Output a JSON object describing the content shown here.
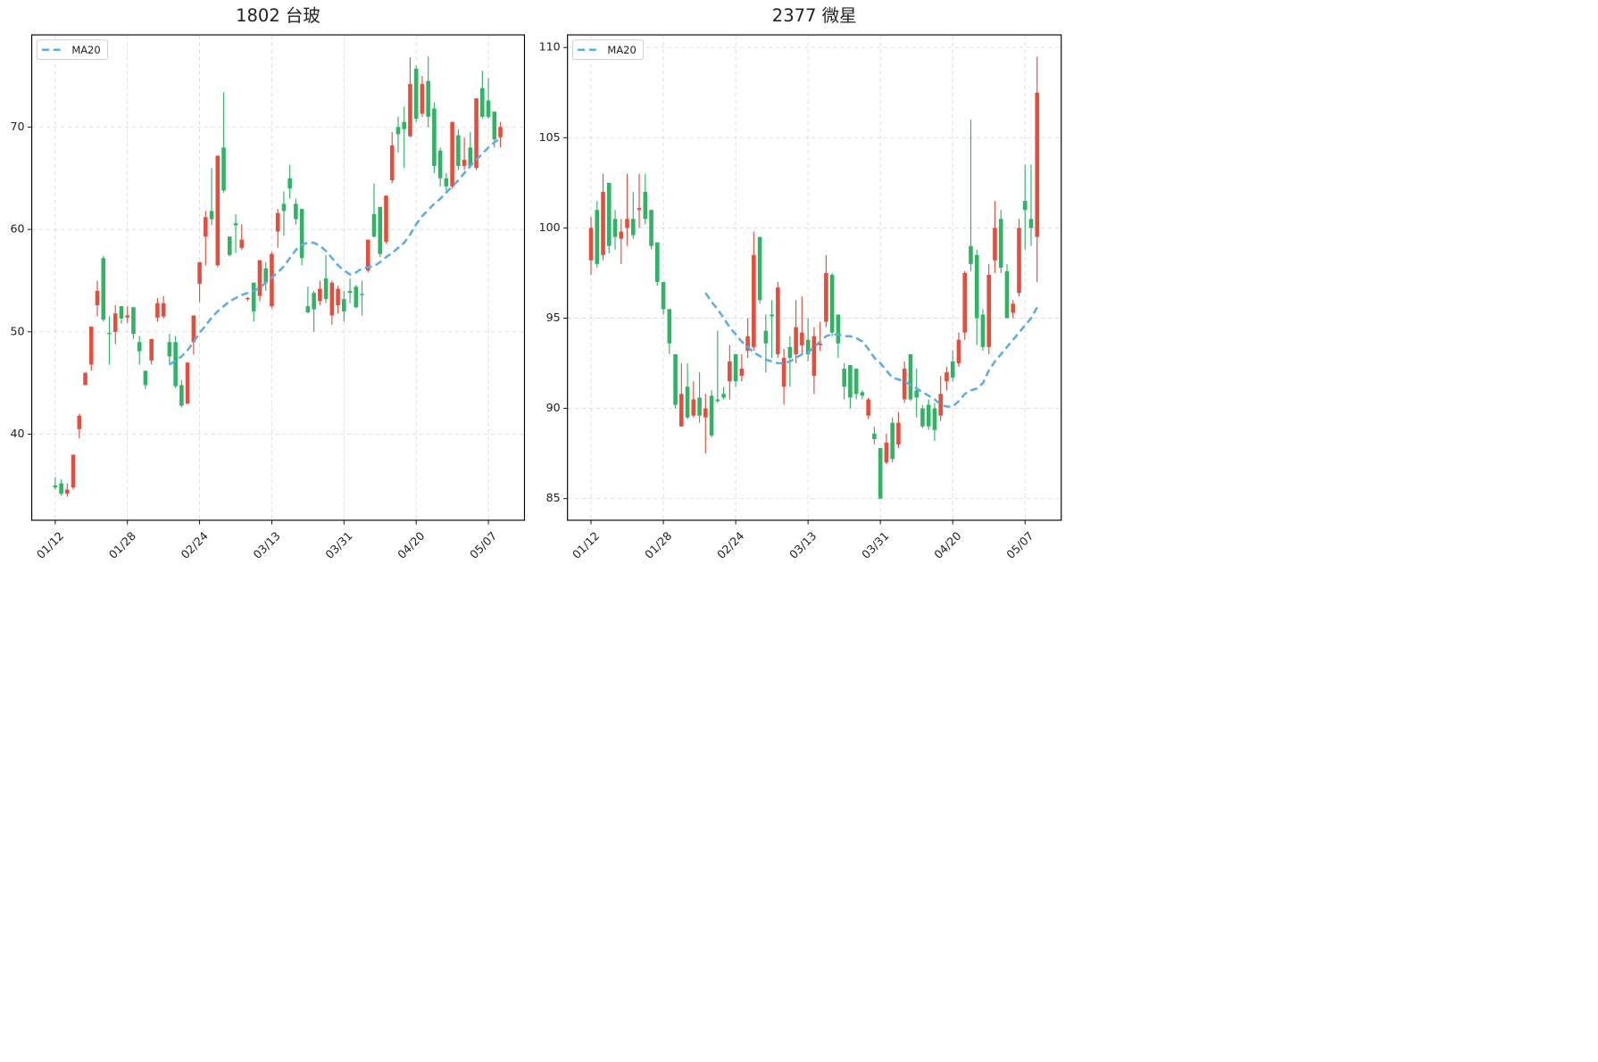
{
  "chart_data": [
    {
      "type": "candlestick",
      "title": "1802 台玻",
      "xlim": [
        -3.9,
        78
      ],
      "xticks": [
        {
          "value": 0,
          "label": "01/12"
        },
        {
          "value": 12,
          "label": "01/28"
        },
        {
          "value": 24,
          "label": "02/24"
        },
        {
          "value": 36,
          "label": "03/13"
        },
        {
          "value": 48,
          "label": "03/31"
        },
        {
          "value": 60,
          "label": "04/20"
        },
        {
          "value": 72,
          "label": "05/07"
        }
      ],
      "ylim": [
        31.6,
        79.0
      ],
      "yticks": [
        40,
        50,
        60,
        70
      ],
      "grid": true,
      "legend": "upper left",
      "up_color": "#e74c3c",
      "down_color": "#2eb464",
      "open": [
        35.0,
        35.2,
        34.2,
        34.8,
        40.5,
        44.8,
        46.8,
        52.6,
        57.2,
        49.9,
        50.0,
        52.5,
        51.4,
        52.4,
        49.0,
        46.2,
        47.2,
        51.4,
        51.5,
        49.0,
        49.0,
        44.8,
        43.0,
        49.0,
        54.7,
        59.3,
        61.8,
        56.5,
        68.0,
        59.3,
        60.6,
        58.2,
        53.2,
        54.8,
        53.5,
        56.2,
        52.5,
        59.8,
        62.5,
        65.0,
        62.5,
        62.0,
        52.5,
        53.8,
        53.0,
        55.2,
        51.6,
        52.6,
        53.2,
        54.0,
        54.4,
        53.7,
        56.0,
        61.5,
        62.2,
        58.8,
        64.8,
        70.0,
        70.5,
        69.1,
        75.7,
        71.3,
        74.5,
        71.8,
        67.7,
        65.0,
        64.2,
        69.2,
        66.2,
        68.0,
        66.0,
        73.8,
        72.6,
        71.5,
        69.0
      ],
      "high": [
        35.8,
        35.6,
        35.2,
        38.0,
        42.0,
        46.0,
        50.5,
        55.0,
        57.4,
        51.5,
        52.6,
        52.5,
        52.5,
        52.4,
        49.6,
        46.2,
        49.3,
        53.3,
        53.5,
        49.8,
        49.6,
        45.3,
        47.0,
        51.6,
        56.8,
        61.8,
        66.0,
        67.2,
        73.4,
        59.3,
        61.5,
        60.5,
        53.4,
        54.8,
        57.0,
        56.8,
        57.8,
        62.0,
        63.7,
        66.3,
        63.0,
        62.0,
        54.4,
        54.0,
        55.0,
        57.5,
        55.0,
        54.5,
        54.0,
        55.2,
        54.6,
        55.0,
        59.0,
        64.5,
        62.2,
        63.3,
        69.5,
        71.0,
        72.0,
        76.8,
        76.0,
        75.0,
        76.9,
        72.4,
        68.0,
        65.5,
        70.5,
        69.8,
        69.0,
        69.5,
        72.8,
        75.5,
        74.8,
        71.5,
        70.5
      ],
      "low": [
        34.6,
        34.0,
        33.9,
        34.6,
        39.6,
        44.8,
        46.2,
        51.5,
        51.0,
        46.8,
        48.8,
        50.8,
        50.9,
        49.3,
        46.8,
        44.4,
        46.8,
        51.0,
        51.3,
        46.8,
        44.5,
        42.6,
        42.9,
        47.8,
        52.9,
        56.5,
        60.4,
        56.3,
        63.6,
        57.4,
        57.7,
        58.0,
        53.0,
        51.0,
        53.0,
        54.0,
        52.3,
        58.2,
        59.4,
        63.0,
        60.5,
        56.5,
        51.8,
        50.0,
        52.6,
        52.8,
        50.7,
        51.8,
        51.0,
        52.8,
        52.3,
        51.6,
        55.8,
        59.2,
        57.3,
        58.6,
        64.5,
        67.5,
        66.0,
        69.0,
        70.5,
        71.0,
        70.0,
        65.5,
        64.2,
        63.6,
        64.0,
        65.8,
        65.8,
        66.0,
        65.8,
        70.8,
        70.8,
        68.0,
        68.0
      ],
      "close": [
        34.8,
        34.2,
        34.6,
        38.0,
        41.8,
        46.0,
        50.5,
        54.0,
        51.2,
        49.8,
        51.8,
        51.3,
        51.6,
        49.8,
        48.1,
        44.8,
        49.3,
        52.8,
        52.8,
        47.6,
        44.7,
        42.8,
        47.0,
        51.6,
        56.8,
        61.2,
        61.0,
        67.2,
        63.8,
        57.5,
        60.4,
        59.0,
        53.3,
        52.0,
        57.0,
        54.8,
        57.6,
        61.6,
        61.8,
        64.0,
        61.0,
        57.2,
        51.9,
        52.2,
        54.2,
        53.2,
        54.8,
        54.2,
        52.0,
        53.8,
        52.4,
        53.6,
        59.0,
        59.3,
        57.6,
        63.3,
        68.2,
        69.3,
        69.8,
        74.2,
        70.8,
        74.2,
        71.0,
        66.2,
        65.0,
        64.2,
        70.5,
        66.2,
        66.8,
        66.2,
        72.8,
        71.0,
        71.0,
        68.8,
        70.0
      ],
      "series": [
        {
          "name": "MA20",
          "color": "#5dade2",
          "values": [
            null,
            null,
            null,
            null,
            null,
            null,
            null,
            null,
            null,
            null,
            null,
            null,
            null,
            null,
            null,
            null,
            null,
            null,
            null,
            46.8,
            47.2,
            47.6,
            48.2,
            49.0,
            49.9,
            50.6,
            51.4,
            52.0,
            52.5,
            53.0,
            53.3,
            53.6,
            53.8,
            54.0,
            54.3,
            54.8,
            55.3,
            55.8,
            56.4,
            57.2,
            58.0,
            58.5,
            58.7,
            58.7,
            58.4,
            57.9,
            57.2,
            56.5,
            56.0,
            55.6,
            55.8,
            56.2,
            56.3,
            56.4,
            56.8,
            57.3,
            57.7,
            58.2,
            58.7,
            59.5,
            60.5,
            61.3,
            61.9,
            62.5,
            63.0,
            63.6,
            64.2,
            64.8,
            65.5,
            66.2,
            66.8,
            67.4,
            68.0,
            68.5,
            68.9
          ]
        }
      ]
    },
    {
      "type": "candlestick",
      "title": "2377 微星",
      "xlim": [
        -3.9,
        78
      ],
      "xticks": [
        {
          "value": 0,
          "label": "01/12"
        },
        {
          "value": 12,
          "label": "01/28"
        },
        {
          "value": 24,
          "label": "02/24"
        },
        {
          "value": 36,
          "label": "03/13"
        },
        {
          "value": 48,
          "label": "03/31"
        },
        {
          "value": 60,
          "label": "04/20"
        },
        {
          "value": 72,
          "label": "05/07"
        }
      ],
      "ylim": [
        83.8,
        110.7
      ],
      "yticks": [
        85,
        90,
        95,
        100,
        105,
        110
      ],
      "grid": true,
      "legend": "upper left",
      "up_color": "#e74c3c",
      "down_color": "#2eb464",
      "open": [
        98.2,
        101.0,
        98.5,
        102.5,
        100.5,
        99.4,
        100.0,
        100.5,
        101.0,
        102.0,
        101.0,
        99.2,
        97.0,
        95.5,
        93.0,
        89.0,
        91.2,
        89.6,
        90.6,
        89.5,
        90.7,
        90.5,
        90.8,
        91.5,
        93.0,
        91.8,
        93.2,
        93.4,
        99.5,
        94.3,
        95.2,
        93.0,
        91.2,
        93.4,
        93.0,
        93.5,
        93.8,
        91.8,
        93.5,
        94.8,
        97.4,
        95.2,
        92.2,
        92.4,
        92.2,
        90.9,
        89.6,
        88.6,
        87.8,
        87.0,
        89.2,
        88.0,
        90.5,
        93.0,
        91.0,
        90.0,
        90.2,
        90.0,
        89.6,
        91.5,
        92.6,
        92.5,
        94.2,
        99.0,
        98.5,
        95.2,
        93.4,
        98.2,
        100.5,
        97.6,
        95.3,
        96.4,
        101.5,
        100.5,
        99.5
      ],
      "high": [
        100.6,
        101.5,
        103.0,
        102.5,
        101.0,
        100.5,
        103.0,
        102.0,
        103.0,
        103.0,
        101.0,
        99.2,
        97.0,
        95.5,
        93.0,
        92.5,
        92.5,
        91.5,
        92.0,
        90.8,
        91.0,
        94.3,
        91.2,
        93.5,
        93.0,
        93.0,
        95.0,
        99.8,
        99.5,
        95.2,
        96.0,
        97.0,
        93.3,
        94.0,
        96.0,
        96.2,
        95.0,
        94.5,
        94.8,
        98.5,
        97.5,
        95.2,
        92.5,
        92.4,
        92.2,
        91.0,
        90.6,
        89.0,
        87.8,
        88.6,
        89.5,
        89.8,
        92.6,
        93.0,
        92.2,
        90.2,
        90.5,
        90.3,
        91.8,
        92.3,
        93.2,
        94.2,
        97.6,
        106.0,
        98.8,
        95.5,
        98.0,
        101.5,
        101.0,
        98.0,
        96.0,
        100.5,
        103.5,
        103.5,
        109.5
      ],
      "low": [
        97.4,
        97.8,
        98.2,
        98.6,
        98.8,
        98.0,
        99.0,
        99.4,
        100.0,
        100.2,
        98.8,
        96.8,
        95.2,
        93.0,
        90.0,
        89.0,
        89.4,
        89.5,
        89.2,
        87.5,
        88.4,
        90.3,
        90.5,
        90.5,
        91.2,
        91.5,
        92.8,
        93.2,
        95.8,
        92.0,
        92.8,
        92.8,
        90.2,
        91.2,
        92.5,
        93.0,
        92.6,
        90.8,
        93.2,
        94.5,
        94.0,
        92.8,
        90.5,
        90.0,
        90.5,
        90.5,
        89.4,
        88.0,
        85.0,
        86.9,
        87.0,
        87.8,
        90.3,
        90.4,
        89.5,
        88.9,
        88.8,
        88.2,
        89.3,
        91.0,
        91.5,
        92.3,
        93.8,
        97.6,
        93.5,
        93.2,
        93.0,
        97.5,
        97.5,
        95.0,
        95.0,
        96.2,
        98.8,
        99.0,
        97.0
      ],
      "close": [
        100.0,
        98.0,
        102.0,
        99.0,
        99.5,
        99.8,
        100.5,
        99.6,
        101.1,
        100.5,
        99.0,
        97.0,
        95.5,
        93.6,
        90.2,
        90.8,
        89.5,
        90.5,
        89.6,
        90.0,
        88.5,
        90.4,
        90.6,
        92.6,
        91.5,
        92.2,
        94.0,
        98.5,
        96.0,
        93.6,
        95.1,
        96.7,
        92.8,
        92.8,
        94.5,
        94.2,
        93.0,
        94.0,
        93.6,
        97.5,
        94.2,
        93.6,
        91.2,
        90.6,
        90.8,
        90.7,
        90.5,
        88.3,
        85.0,
        88.1,
        87.2,
        89.2,
        92.2,
        90.5,
        90.6,
        89.0,
        89.0,
        88.8,
        90.8,
        92.0,
        91.7,
        93.8,
        97.5,
        98.0,
        95.0,
        93.4,
        97.4,
        100.0,
        97.8,
        95.0,
        95.8,
        100.0,
        101.0,
        100.0,
        107.5
      ],
      "series": [
        {
          "name": "MA20",
          "color": "#5dade2",
          "values": [
            null,
            null,
            null,
            null,
            null,
            null,
            null,
            null,
            null,
            null,
            null,
            null,
            null,
            null,
            null,
            null,
            null,
            null,
            null,
            96.4,
            95.9,
            95.5,
            95.0,
            94.5,
            94.1,
            93.7,
            93.4,
            93.1,
            92.9,
            92.7,
            92.6,
            92.5,
            92.5,
            92.6,
            92.8,
            93.0,
            93.1,
            93.4,
            93.7,
            94.0,
            94.1,
            94.1,
            94.0,
            94.0,
            93.9,
            93.7,
            93.3,
            92.8,
            92.5,
            92.1,
            91.7,
            91.6,
            91.5,
            91.3,
            91.1,
            90.9,
            90.7,
            90.5,
            90.2,
            90.1,
            90.1,
            90.4,
            90.8,
            91.0,
            91.1,
            91.4,
            92.1,
            92.6,
            93.0,
            93.4,
            93.8,
            94.2,
            94.6,
            95.0,
            95.6
          ]
        }
      ]
    }
  ]
}
